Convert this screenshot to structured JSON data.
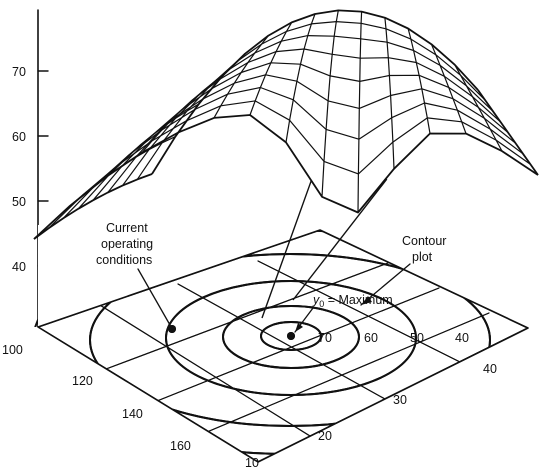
{
  "figure": {
    "type": "response surface with contour plot",
    "z_axis": {
      "ticks": [
        "70",
        "60",
        "50",
        "40"
      ]
    },
    "left_floor_axis": {
      "ticks": [
        "100",
        "120",
        "140",
        "160"
      ]
    },
    "right_floor_axis": {
      "ticks": [
        "10",
        "20",
        "30",
        "40"
      ]
    },
    "contour_labels": [
      "70",
      "60",
      "50",
      "40"
    ],
    "annotations": {
      "current_line1": "Current",
      "current_line2": "operating",
      "current_line3": "conditions",
      "contour_line1": "Contour",
      "contour_line2": "plot",
      "maximum_symbol": "y",
      "maximum_subscript": "0",
      "maximum_rest": " = Maximum"
    },
    "colors": {
      "ink": "#111111",
      "paper": "#ffffff",
      "surface": "#ffffff"
    }
  }
}
